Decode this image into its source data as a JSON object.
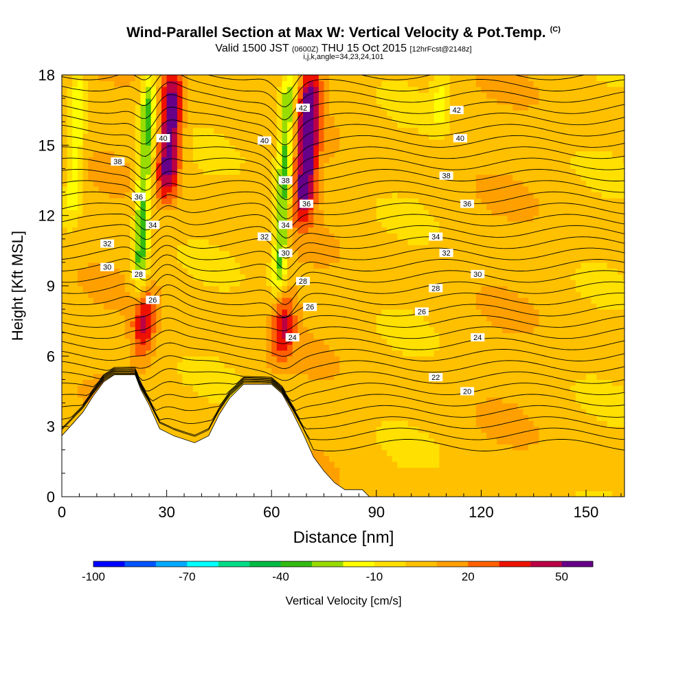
{
  "header": {
    "title": "Wind-Parallel Section at Max W: Vertical Velocity & Pot.Temp.",
    "title_unit": "(C)",
    "valid_prefix": "Valid 1500 JST",
    "valid_zulu": "(0600Z)",
    "valid_date": "THU 15 Oct 2015",
    "forecast": "[12hrFcst@2148z]",
    "params": "i,j,k,angle=34,23,24,101"
  },
  "chart_data": {
    "type": "heatmap",
    "xlabel": "Distance [nm]",
    "ylabel": "Height [Kft MSL]",
    "xlim": [
      0,
      161
    ],
    "ylim": [
      0,
      18
    ],
    "xticks": [
      0,
      30,
      60,
      90,
      120,
      150
    ],
    "yticks": [
      0,
      3,
      6,
      9,
      12,
      15,
      18
    ],
    "colorbar": {
      "label": "Vertical Velocity [cm/s]",
      "ticks": [
        -100,
        -70,
        -40,
        -10,
        20,
        50
      ],
      "bins": 16,
      "min": -100,
      "max": 60,
      "colors": [
        "#0000ff",
        "#0055ff",
        "#00aaff",
        "#00ffff",
        "#00dd88",
        "#00bb44",
        "#33bb11",
        "#99dd00",
        "#ffff00",
        "#ffe000",
        "#ffc000",
        "#ffa000",
        "#ff6000",
        "#ee1100",
        "#bb0044",
        "#660088"
      ]
    },
    "updrafts": [
      {
        "x": 30,
        "z_top": 18,
        "z_bottom": 13,
        "w": 55
      },
      {
        "x": 23,
        "z_top": 8.5,
        "z_bottom": 6,
        "w": 35
      },
      {
        "x": 69,
        "z_top": 18,
        "z_bottom": 12,
        "w": 55
      },
      {
        "x": 63,
        "z_top": 8.5,
        "z_bottom": 6,
        "w": 35
      }
    ],
    "downdrafts": [
      {
        "x": 22,
        "z_top": 18,
        "z_bottom": 9,
        "w": -40
      },
      {
        "x": 62,
        "z_top": 18,
        "z_bottom": 9,
        "w": -40
      },
      {
        "x": 3,
        "z_top": 18,
        "z_bottom": 12,
        "w": -25
      },
      {
        "x": 108,
        "z_top": 18,
        "z_bottom": 16,
        "w": -20
      }
    ],
    "terrain": [
      {
        "x": 0,
        "z": 2.6
      },
      {
        "x": 3,
        "z": 3.1
      },
      {
        "x": 6,
        "z": 3.6
      },
      {
        "x": 9,
        "z": 4.3
      },
      {
        "x": 12,
        "z": 4.9
      },
      {
        "x": 15,
        "z": 5.2
      },
      {
        "x": 21,
        "z": 5.2
      },
      {
        "x": 22.5,
        "z": 4.6
      },
      {
        "x": 25,
        "z": 3.9
      },
      {
        "x": 28,
        "z": 2.9
      },
      {
        "x": 32,
        "z": 2.6
      },
      {
        "x": 38,
        "z": 2.3
      },
      {
        "x": 42,
        "z": 2.6
      },
      {
        "x": 45,
        "z": 3.5
      },
      {
        "x": 48,
        "z": 4.2
      },
      {
        "x": 52,
        "z": 4.8
      },
      {
        "x": 60,
        "z": 4.8
      },
      {
        "x": 63,
        "z": 4.4
      },
      {
        "x": 66,
        "z": 3.6
      },
      {
        "x": 69,
        "z": 2.7
      },
      {
        "x": 72,
        "z": 1.7
      },
      {
        "x": 75,
        "z": 1.1
      },
      {
        "x": 78,
        "z": 0.6
      },
      {
        "x": 81,
        "z": 0.3
      },
      {
        "x": 86,
        "z": 0.3
      },
      {
        "x": 88,
        "z": 0
      }
    ],
    "isentrope_labels": [
      {
        "text": "42",
        "x": 69,
        "z": 16.6
      },
      {
        "text": "42",
        "x": 113,
        "z": 16.5
      },
      {
        "text": "40",
        "x": 29,
        "z": 15.3
      },
      {
        "text": "40",
        "x": 58,
        "z": 15.2
      },
      {
        "text": "40",
        "x": 114,
        "z": 15.3
      },
      {
        "text": "38",
        "x": 16,
        "z": 14.3
      },
      {
        "text": "38",
        "x": 64,
        "z": 13.5
      },
      {
        "text": "38",
        "x": 110,
        "z": 13.7
      },
      {
        "text": "36",
        "x": 22,
        "z": 12.8
      },
      {
        "text": "36",
        "x": 70,
        "z": 12.5
      },
      {
        "text": "36",
        "x": 116,
        "z": 12.5
      },
      {
        "text": "34",
        "x": 26,
        "z": 11.6
      },
      {
        "text": "34",
        "x": 64,
        "z": 11.6
      },
      {
        "text": "34",
        "x": 107,
        "z": 11.1
      },
      {
        "text": "32",
        "x": 13,
        "z": 10.8
      },
      {
        "text": "32",
        "x": 58,
        "z": 11.1
      },
      {
        "text": "32",
        "x": 110,
        "z": 10.4
      },
      {
        "text": "30",
        "x": 13,
        "z": 9.8
      },
      {
        "text": "30",
        "x": 64,
        "z": 10.4
      },
      {
        "text": "30",
        "x": 119,
        "z": 9.5
      },
      {
        "text": "28",
        "x": 22,
        "z": 9.5
      },
      {
        "text": "28",
        "x": 69,
        "z": 9.2
      },
      {
        "text": "28",
        "x": 107,
        "z": 8.9
      },
      {
        "text": "26",
        "x": 26,
        "z": 8.4
      },
      {
        "text": "26",
        "x": 71,
        "z": 8.1
      },
      {
        "text": "26",
        "x": 103,
        "z": 7.9
      },
      {
        "text": "24",
        "x": 66,
        "z": 6.8
      },
      {
        "text": "24",
        "x": 119,
        "z": 6.8
      },
      {
        "text": "22",
        "x": 107,
        "z": 5.1
      },
      {
        "text": "20",
        "x": 116,
        "z": 4.5
      }
    ]
  }
}
